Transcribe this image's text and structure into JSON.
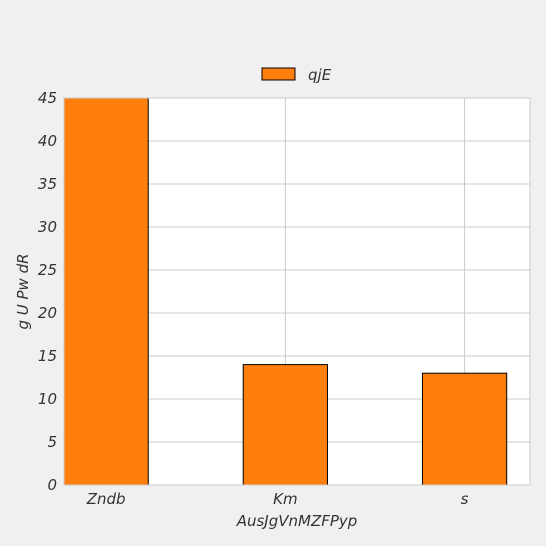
{
  "chart_data": {
    "type": "bar",
    "title": "",
    "xlabel": "AusJgVnMZFPyp",
    "ylabel": "g U Pw dR",
    "categories": [
      "Zndb",
      "Km",
      "s"
    ],
    "series": [
      {
        "name": "qjE",
        "values": [
          45,
          14,
          13
        ],
        "color": "#ff7f0e"
      }
    ],
    "ylim": [
      0,
      45
    ],
    "yticks": [
      0,
      5,
      10,
      15,
      20,
      25,
      30,
      35,
      40,
      45
    ],
    "grid": true,
    "legend": "top-center",
    "colors": {
      "background": "#f0f0f0",
      "plot_background": "#ffffff",
      "grid": "#cbcbcb",
      "bar_edge": "#000000"
    }
  }
}
